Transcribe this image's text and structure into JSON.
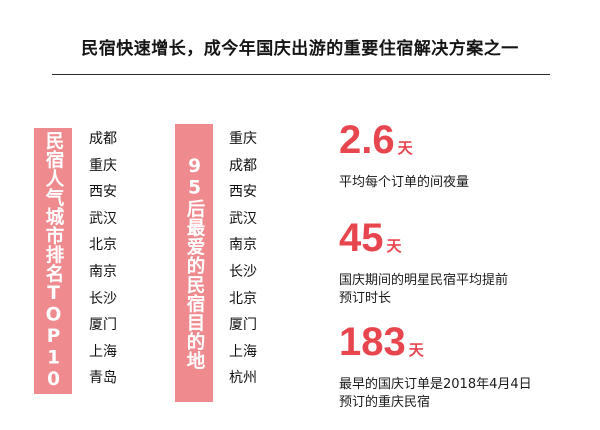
{
  "title": "民宿快速增长，成今年国庆出游的重要住宿解决方案之一",
  "left_banner": "民宿人气城市排名TOP10",
  "left_cities": [
    "成都",
    "重庆",
    "西安",
    "武汉",
    "北京",
    "南京",
    "长沙",
    "厦门",
    "上海",
    "青岛"
  ],
  "mid_banner": "95后最爱的民宿目的地",
  "mid_cities": [
    "重庆",
    "成都",
    "西安",
    "武汉",
    "南京",
    "长沙",
    "北京",
    "厦门",
    "上海",
    "杭州"
  ],
  "stats": [
    {
      "value": "2.6",
      "unit": "天",
      "desc_lines": [
        "平均每个订单的间夜量"
      ]
    },
    {
      "value": "45",
      "unit": "天",
      "desc_lines": [
        "国庆期间的明星民宿平均提前",
        "预订时长"
      ]
    },
    {
      "value": "183",
      "unit": "天",
      "desc_lines": [
        "最早的国庆订单是2018年4月4日",
        "预订的重庆民宿"
      ]
    }
  ],
  "colors": {
    "banner": "#ef8a8e",
    "accent": "#e8464f",
    "rule": "#2a2a2a"
  }
}
